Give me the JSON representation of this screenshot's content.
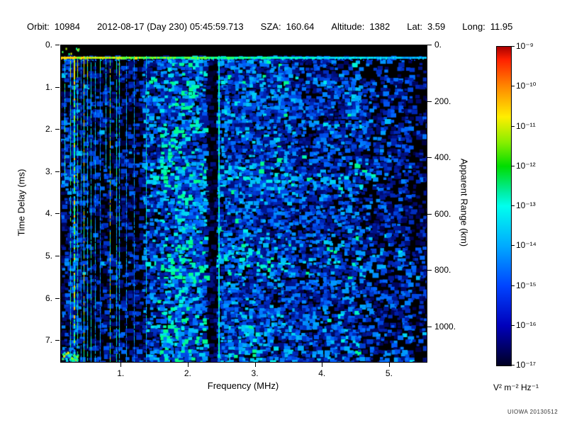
{
  "header": {
    "orbit_label": "Orbit:",
    "orbit": "10984",
    "datetime": "2012-08-17 (Day 230) 05:45:59.713",
    "sza_label": "SZA:",
    "sza": "160.64",
    "altitude_label": "Altitude:",
    "altitude": "1382",
    "lat_label": "Lat:",
    "lat": "3.59",
    "long_label": "Long:",
    "long": "11.95"
  },
  "chart_data": {
    "type": "heatmap",
    "description": "Radar sounder ionogram spectrogram: received spectral density (log color scale 1e-17 to 1e-9 V^2 m^-2 Hz^-1) versus sounding frequency (0.1-5.5 MHz, x) and echo time delay (0-7.5 ms, left y) / apparent range (0-1000 km, right y). Mostly blue noise speckle, bright cyan/green vertical electron plasma harmonic lines below ~1.5 MHz, a bright horizontal echo line at ~0.3 ms delay, black band at zero delay, a dark vertical gap near 2.3-2.4 MHz with a bright narrow line at ~2.44 MHz.",
    "xlabel": "Frequency (MHz)",
    "ylabel_left": "Time Delay (ms)",
    "ylabel_right": "Apparent Range (km)",
    "xlim": [
      0.1,
      5.55
    ],
    "ylim_ms": [
      0,
      7.5
    ],
    "x_ticks": {
      "values": [
        1,
        2,
        3,
        4,
        5
      ],
      "labels": [
        "1.",
        "2.",
        "3.",
        "4.",
        "5."
      ]
    },
    "y_ticks_left": {
      "values": [
        0,
        1,
        2,
        3,
        4,
        5,
        6,
        7
      ],
      "labels": [
        "0.",
        "1.",
        "2.",
        "3.",
        "4.",
        "5.",
        "6.",
        "7."
      ]
    },
    "y_ticks_right": {
      "values": [
        0,
        200,
        400,
        600,
        800,
        1000
      ],
      "labels": [
        "0.",
        "200.",
        "400.",
        "600.",
        "800.",
        "1000."
      ],
      "km_per_ms": 149.896
    },
    "colorbar": {
      "ticks": [
        "10⁻⁹",
        "10⁻¹⁰",
        "10⁻¹¹",
        "10⁻¹²",
        "10⁻¹³",
        "10⁻¹⁴",
        "10⁻¹⁵",
        "10⁻¹⁶",
        "10⁻¹⁷"
      ],
      "unit": "V² m⁻² Hz⁻¹",
      "min_exp": -17,
      "max_exp": -9,
      "stops": [
        {
          "pos": 0.0,
          "color": "#aa0000"
        },
        {
          "pos": 0.04,
          "color": "#ff2000"
        },
        {
          "pos": 0.125,
          "color": "#ff8800"
        },
        {
          "pos": 0.22,
          "color": "#ffee00"
        },
        {
          "pos": 0.3,
          "color": "#88ee00"
        },
        {
          "pos": 0.375,
          "color": "#00dd00"
        },
        {
          "pos": 0.46,
          "color": "#00eeaa"
        },
        {
          "pos": 0.5,
          "color": "#00ffee"
        },
        {
          "pos": 0.625,
          "color": "#00aaff"
        },
        {
          "pos": 0.75,
          "color": "#0044ff"
        },
        {
          "pos": 0.875,
          "color": "#0000bb"
        },
        {
          "pos": 0.96,
          "color": "#000055"
        },
        {
          "pos": 1.0,
          "color": "#000022"
        }
      ]
    },
    "background_color": "#000000",
    "noise_bands": [
      {
        "f": [
          0.1,
          0.34
        ],
        "p": 0.5,
        "s": 0.7
      },
      {
        "f": [
          0.34,
          1.3
        ],
        "p": 0.38,
        "s": 0.45
      },
      {
        "f": [
          1.3,
          1.55
        ],
        "p": 0.55,
        "s": 0.8
      },
      {
        "f": [
          1.55,
          2.28
        ],
        "p": 0.66,
        "s": 0.95
      },
      {
        "f": [
          2.28,
          2.42
        ],
        "p": 0.2,
        "s": 0.45
      },
      {
        "f": [
          2.42,
          2.5
        ],
        "p": 0.55,
        "s": 0.85
      },
      {
        "f": [
          2.5,
          3.6
        ],
        "p": 0.58,
        "s": 0.9
      },
      {
        "f": [
          3.6,
          4.6
        ],
        "p": 0.5,
        "s": 0.78
      },
      {
        "f": [
          4.6,
          5.3
        ],
        "p": 0.42,
        "s": 0.58
      },
      {
        "f": [
          5.3,
          5.55
        ],
        "p": 0.32,
        "s": 0.4
      }
    ],
    "features": [
      {
        "type": "blackout_band",
        "delay_ms": [
          0,
          0.25
        ]
      },
      {
        "type": "plasma_harmonic_lines",
        "freq_mhz": [
          0.155,
          1.47
        ],
        "approx_count": 19
      },
      {
        "type": "bright_marker_line",
        "freq_mhz": 2.44
      },
      {
        "type": "bottom_left_bright_patch",
        "freq_mhz": [
          0.1,
          0.34
        ],
        "delay_ms": [
          7.25,
          7.5
        ]
      },
      {
        "type": "surface_echo_line",
        "delay_ms": 0.3,
        "intensity_left": 0.88,
        "intensity_right": 0.48
      }
    ]
  },
  "credit": "UIOWA 20130512"
}
